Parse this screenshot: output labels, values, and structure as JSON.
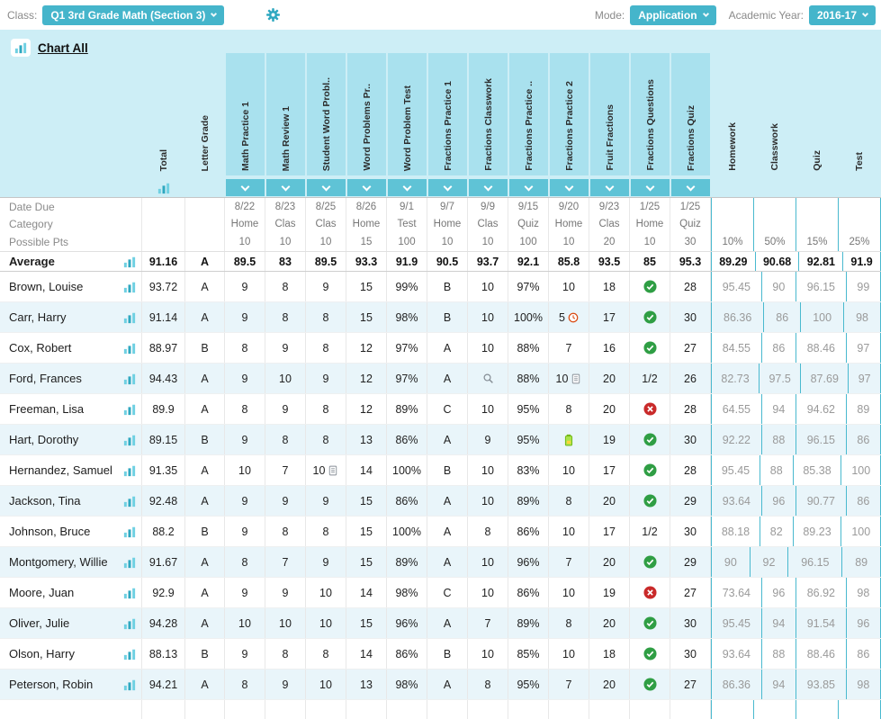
{
  "accent": "#45b5cb",
  "topbar": {
    "class_label": "Class:",
    "class_value": "Q1 3rd Grade Math (Section 3)",
    "mode_label": "Mode:",
    "mode_value": "Application",
    "year_label": "Academic Year:",
    "year_value": "2016-17"
  },
  "header": {
    "chart_all_label": "Chart All",
    "total_label": "Total",
    "letter_label": "Letter Grade",
    "assignments": [
      "Math Practice 1",
      "Math Review 1",
      "Student Word Probl..",
      "Word Problems Pr..",
      "Word Problem Test",
      "Fractions Practice 1",
      "Fractions Classwork",
      "Fractions Practice ..",
      "Fractions Practice 2",
      "Fruit Fractions",
      "Fractions Questions",
      "Fractions Quiz"
    ],
    "categories": [
      "Homework",
      "Classwork",
      "Quiz",
      "Test"
    ]
  },
  "meta_rows": [
    {
      "key": "date-due",
      "label": "Date Due",
      "values": [
        "8/22",
        "8/23",
        "8/25",
        "8/26",
        "9/1",
        "9/7",
        "9/9",
        "9/15",
        "9/20",
        "9/23",
        "1/25",
        "1/25"
      ],
      "weights": [
        "",
        "",
        "",
        ""
      ]
    },
    {
      "key": "category",
      "label": "Category",
      "values": [
        "Home",
        "Clas",
        "Clas",
        "Home",
        "Test",
        "Home",
        "Clas",
        "Quiz",
        "Home",
        "Clas",
        "Home",
        "Quiz"
      ],
      "weights": [
        "",
        "",
        "",
        ""
      ]
    },
    {
      "key": "possible-pts",
      "label": "Possible Pts",
      "values": [
        "10",
        "10",
        "10",
        "15",
        "100",
        "10",
        "10",
        "100",
        "10",
        "20",
        "10",
        "30"
      ],
      "weights": [
        "10%",
        "50%",
        "15%",
        "25%"
      ]
    }
  ],
  "average": {
    "label": "Average",
    "total": "91.16",
    "letter": "A",
    "scores": [
      "89.5",
      "83",
      "89.5",
      "93.3",
      "91.9",
      "90.5",
      "93.7",
      "92.1",
      "85.8",
      "93.5",
      "85",
      "95.3"
    ],
    "categories": [
      "89.29",
      "90.68",
      "92.81",
      "91.9"
    ]
  },
  "students": [
    {
      "name": "Brown, Louise",
      "total": "93.72",
      "letter": "A",
      "scores": [
        "9",
        "8",
        "9",
        "15",
        "99%",
        "B",
        "10",
        "97%",
        "10",
        "18",
        {
          "icon": "check-icon"
        },
        "28"
      ],
      "categories": [
        "95.45",
        "90",
        "96.15",
        "99"
      ]
    },
    {
      "name": "Carr, Harry",
      "total": "91.14",
      "letter": "A",
      "scores": [
        "9",
        "8",
        "8",
        "15",
        "98%",
        "B",
        "10",
        "100%",
        {
          "text": "5",
          "icon": "clock-icon"
        },
        "17",
        {
          "icon": "check-icon"
        },
        "30"
      ],
      "categories": [
        "86.36",
        "86",
        "100",
        "98"
      ]
    },
    {
      "name": "Cox, Robert",
      "total": "88.97",
      "letter": "B",
      "scores": [
        "8",
        "9",
        "8",
        "12",
        "97%",
        "A",
        "10",
        "88%",
        "7",
        "16",
        {
          "icon": "check-icon"
        },
        "27"
      ],
      "categories": [
        "84.55",
        "86",
        "88.46",
        "97"
      ]
    },
    {
      "name": "Ford, Frances",
      "total": "94.43",
      "letter": "A",
      "scores": [
        "9",
        "10",
        "9",
        "12",
        "97%",
        "A",
        {
          "icon": "magnifier-icon"
        },
        "88%",
        {
          "text": "10",
          "icon": "note-icon"
        },
        "20",
        "1/2",
        "26"
      ],
      "categories": [
        "82.73",
        "97.5",
        "87.69",
        "97"
      ]
    },
    {
      "name": "Freeman, Lisa",
      "total": "89.9",
      "letter": "A",
      "scores": [
        "8",
        "9",
        "8",
        "12",
        "89%",
        "C",
        "10",
        "95%",
        "8",
        "20",
        {
          "icon": "x-icon"
        },
        "28"
      ],
      "categories": [
        "64.55",
        "94",
        "94.62",
        "89"
      ]
    },
    {
      "name": "Hart, Dorothy",
      "total": "89.15",
      "letter": "B",
      "scores": [
        "9",
        "8",
        "8",
        "13",
        "86%",
        "A",
        "9",
        "95%",
        {
          "icon": "battery-icon"
        },
        "19",
        {
          "icon": "check-icon"
        },
        "30"
      ],
      "categories": [
        "92.22",
        "88",
        "96.15",
        "86"
      ]
    },
    {
      "name": "Hernandez, Samuel",
      "total": "91.35",
      "letter": "A",
      "scores": [
        "10",
        "7",
        {
          "text": "10",
          "icon": "note-icon"
        },
        "14",
        "100%",
        "B",
        "10",
        "83%",
        "10",
        "17",
        {
          "icon": "check-icon"
        },
        "28"
      ],
      "categories": [
        "95.45",
        "88",
        "85.38",
        "100"
      ]
    },
    {
      "name": "Jackson, Tina",
      "total": "92.48",
      "letter": "A",
      "scores": [
        "9",
        "9",
        "9",
        "15",
        "86%",
        "A",
        "10",
        "89%",
        "8",
        "20",
        {
          "icon": "check-icon"
        },
        "29"
      ],
      "categories": [
        "93.64",
        "96",
        "90.77",
        "86"
      ]
    },
    {
      "name": "Johnson, Bruce",
      "total": "88.2",
      "letter": "B",
      "scores": [
        "9",
        "8",
        "8",
        "15",
        "100%",
        "A",
        "8",
        "86%",
        "10",
        "17",
        "1/2",
        "30"
      ],
      "categories": [
        "88.18",
        "82",
        "89.23",
        "100"
      ]
    },
    {
      "name": "Montgomery, Willie",
      "total": "91.67",
      "letter": "A",
      "scores": [
        "8",
        "7",
        "9",
        "15",
        "89%",
        "A",
        "10",
        "96%",
        "7",
        "20",
        {
          "icon": "check-icon"
        },
        "29"
      ],
      "categories": [
        "90",
        "92",
        "96.15",
        "89"
      ]
    },
    {
      "name": "Moore, Juan",
      "total": "92.9",
      "letter": "A",
      "scores": [
        "9",
        "9",
        "10",
        "14",
        "98%",
        "C",
        "10",
        "86%",
        "10",
        "19",
        {
          "icon": "x-icon"
        },
        "27"
      ],
      "categories": [
        "73.64",
        "96",
        "86.92",
        "98"
      ]
    },
    {
      "name": "Oliver, Julie",
      "total": "94.28",
      "letter": "A",
      "scores": [
        "10",
        "10",
        "10",
        "15",
        "96%",
        "A",
        "7",
        "89%",
        "8",
        "20",
        {
          "icon": "check-icon"
        },
        "30"
      ],
      "categories": [
        "95.45",
        "94",
        "91.54",
        "96"
      ]
    },
    {
      "name": "Olson, Harry",
      "total": "88.13",
      "letter": "B",
      "scores": [
        "9",
        "8",
        "8",
        "14",
        "86%",
        "B",
        "10",
        "85%",
        "10",
        "18",
        {
          "icon": "check-icon"
        },
        "30"
      ],
      "categories": [
        "93.64",
        "88",
        "88.46",
        "86"
      ]
    },
    {
      "name": "Peterson, Robin",
      "total": "94.21",
      "letter": "A",
      "scores": [
        "8",
        "9",
        "10",
        "13",
        "98%",
        "A",
        "8",
        "95%",
        "7",
        "20",
        {
          "icon": "check-icon"
        },
        "27"
      ],
      "categories": [
        "86.36",
        "94",
        "93.85",
        "98"
      ]
    }
  ]
}
